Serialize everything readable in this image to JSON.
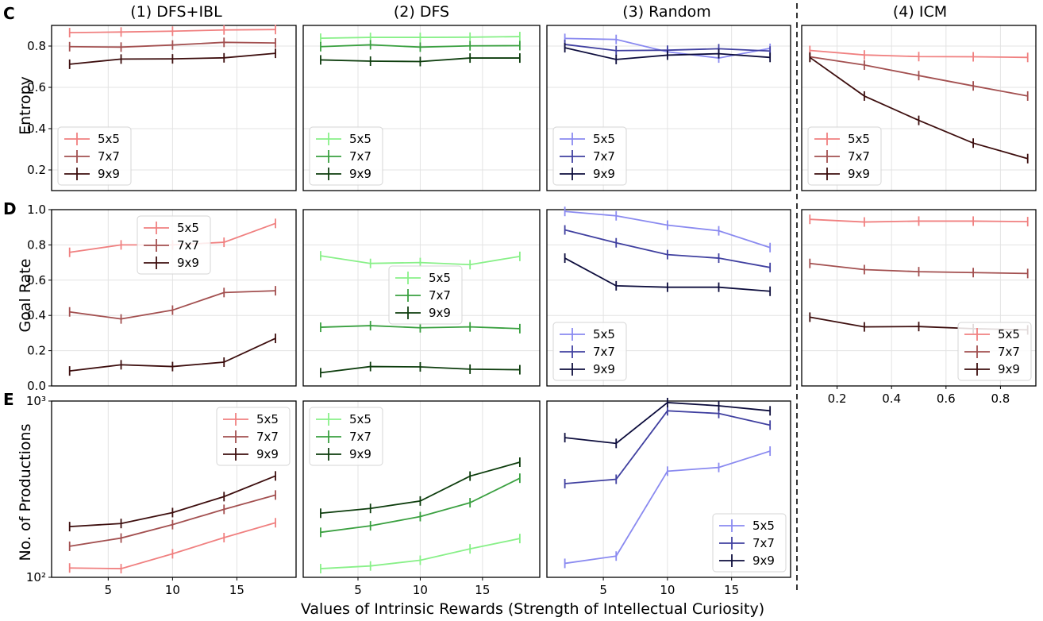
{
  "figure": {
    "row_labels": [
      "C",
      "D",
      "E"
    ],
    "xlabel": "Values of Intrinsic Rewards (Strength of Intellectual Curiosity)"
  },
  "colors": {
    "dfsibl": [
      "#f08080",
      "#a35050",
      "#3d0e0e"
    ],
    "dfs": [
      "#88f088",
      "#3aa040",
      "#0d3d0d"
    ],
    "random": [
      "#8a8af0",
      "#4040a0",
      "#0d0d3d"
    ],
    "icm": [
      "#f08080",
      "#a35050",
      "#3d0e0e"
    ]
  },
  "chart_data": [
    {
      "id": "entropy-dfsibl",
      "type": "line",
      "title": "(1) DFS+IBL",
      "ylabel": "Entropy",
      "x": [
        2,
        6,
        10,
        14,
        18
      ],
      "xlim": [
        0.6,
        19.6
      ],
      "ylim": [
        0.1,
        0.9
      ],
      "yticks": [
        0.2,
        0.4,
        0.6,
        0.8
      ],
      "yticklabels": [
        "0.2",
        "0.4",
        "0.6",
        "0.8"
      ],
      "xticks": [
        5,
        10,
        15
      ],
      "palette": "dfsibl",
      "legend": "lower-left",
      "series": [
        {
          "name": "5x5",
          "values": [
            0.865,
            0.868,
            0.872,
            0.878,
            0.88
          ]
        },
        {
          "name": "7x7",
          "values": [
            0.797,
            0.795,
            0.805,
            0.818,
            0.815
          ]
        },
        {
          "name": "9x9",
          "values": [
            0.712,
            0.737,
            0.738,
            0.743,
            0.765
          ]
        }
      ]
    },
    {
      "id": "entropy-dfs",
      "type": "line",
      "title": "(2) DFS",
      "ylabel": "",
      "x": [
        2,
        6,
        10,
        14,
        18
      ],
      "xlim": [
        0.6,
        19.6
      ],
      "ylim": [
        0.1,
        0.9
      ],
      "yticks": [
        0.2,
        0.4,
        0.6,
        0.8
      ],
      "xticks": [
        5,
        10,
        15
      ],
      "palette": "dfs",
      "legend": "lower-left",
      "series": [
        {
          "name": "5x5",
          "values": [
            0.838,
            0.842,
            0.842,
            0.843,
            0.846
          ]
        },
        {
          "name": "7x7",
          "values": [
            0.797,
            0.806,
            0.795,
            0.801,
            0.802
          ]
        },
        {
          "name": "9x9",
          "values": [
            0.733,
            0.727,
            0.725,
            0.742,
            0.742
          ]
        }
      ]
    },
    {
      "id": "entropy-random",
      "type": "line",
      "title": "(3) Random",
      "ylabel": "",
      "x": [
        2,
        6,
        10,
        14,
        18
      ],
      "xlim": [
        0.6,
        19.6
      ],
      "ylim": [
        0.1,
        0.9
      ],
      "yticks": [
        0.2,
        0.4,
        0.6,
        0.8
      ],
      "xticks": [
        5,
        10,
        15
      ],
      "palette": "random",
      "legend": "lower-left",
      "series": [
        {
          "name": "5x5",
          "values": [
            0.837,
            0.832,
            0.772,
            0.742,
            0.789
          ]
        },
        {
          "name": "7x7",
          "values": [
            0.808,
            0.778,
            0.78,
            0.787,
            0.776
          ]
        },
        {
          "name": "9x9",
          "values": [
            0.792,
            0.735,
            0.756,
            0.763,
            0.745
          ]
        }
      ]
    },
    {
      "id": "entropy-icm",
      "type": "line",
      "title": "(4) ICM",
      "ylabel": "",
      "x": [
        0.1,
        0.3,
        0.5,
        0.7,
        0.9
      ],
      "xlim": [
        0.07,
        0.93
      ],
      "ylim": [
        0.1,
        0.9
      ],
      "yticks": [
        0.2,
        0.4,
        0.6,
        0.8
      ],
      "xticks": [
        0.2,
        0.4,
        0.6,
        0.8
      ],
      "palette": "icm",
      "legend": "lower-left",
      "series": [
        {
          "name": "5x5",
          "values": [
            0.779,
            0.757,
            0.749,
            0.748,
            0.745
          ]
        },
        {
          "name": "7x7",
          "values": [
            0.748,
            0.708,
            0.657,
            0.607,
            0.558
          ]
        },
        {
          "name": "9x9",
          "values": [
            0.745,
            0.558,
            0.44,
            0.33,
            0.255
          ]
        }
      ]
    },
    {
      "id": "goal-dfsibl",
      "type": "line",
      "ylabel": "Goal Rate",
      "x": [
        2,
        6,
        10,
        14,
        18
      ],
      "xlim": [
        0.6,
        19.6
      ],
      "ylim": [
        0.0,
        1.0
      ],
      "yticks": [
        0.0,
        0.2,
        0.4,
        0.6,
        0.8,
        1.0
      ],
      "yticklabels": [
        "0.0",
        "0.2",
        "0.4",
        "0.6",
        "0.8",
        "1.0"
      ],
      "xticks": [
        5,
        10,
        15
      ],
      "palette": "dfsibl",
      "legend": "top-center",
      "series": [
        {
          "name": "5x5",
          "values": [
            0.758,
            0.8,
            0.8,
            0.815,
            0.922
          ]
        },
        {
          "name": "7x7",
          "values": [
            0.42,
            0.38,
            0.43,
            0.53,
            0.54
          ]
        },
        {
          "name": "9x9",
          "values": [
            0.085,
            0.12,
            0.11,
            0.135,
            0.27
          ]
        }
      ]
    },
    {
      "id": "goal-dfs",
      "type": "line",
      "ylabel": "",
      "x": [
        2,
        6,
        10,
        14,
        18
      ],
      "xlim": [
        0.6,
        19.6
      ],
      "ylim": [
        0.0,
        1.0
      ],
      "yticks": [
        0.0,
        0.2,
        0.4,
        0.6,
        0.8,
        1.0
      ],
      "xticks": [
        5,
        10,
        15
      ],
      "palette": "dfs",
      "legend": "center",
      "series": [
        {
          "name": "5x5",
          "values": [
            0.738,
            0.695,
            0.7,
            0.688,
            0.735
          ]
        },
        {
          "name": "7x7",
          "values": [
            0.333,
            0.342,
            0.33,
            0.335,
            0.325
          ]
        },
        {
          "name": "9x9",
          "values": [
            0.075,
            0.11,
            0.108,
            0.095,
            0.092
          ]
        }
      ]
    },
    {
      "id": "goal-random",
      "type": "line",
      "ylabel": "",
      "x": [
        2,
        6,
        10,
        14,
        18
      ],
      "xlim": [
        0.6,
        19.6
      ],
      "ylim": [
        0.0,
        1.0
      ],
      "yticks": [
        0.0,
        0.2,
        0.4,
        0.6,
        0.8,
        1.0
      ],
      "xticks": [
        5,
        10,
        15
      ],
      "palette": "random",
      "legend": "lower-left",
      "series": [
        {
          "name": "5x5",
          "values": [
            0.99,
            0.965,
            0.912,
            0.88,
            0.785
          ]
        },
        {
          "name": "7x7",
          "values": [
            0.885,
            0.812,
            0.745,
            0.725,
            0.672
          ]
        },
        {
          "name": "9x9",
          "values": [
            0.725,
            0.568,
            0.56,
            0.56,
            0.537
          ]
        }
      ]
    },
    {
      "id": "goal-icm",
      "type": "line",
      "ylabel": "",
      "x": [
        0.1,
        0.3,
        0.5,
        0.7,
        0.9
      ],
      "xlim": [
        0.07,
        0.93
      ],
      "ylim": [
        0.0,
        1.0
      ],
      "yticks": [
        0.0,
        0.2,
        0.4,
        0.6,
        0.8,
        1.0
      ],
      "xticks": [
        0.2,
        0.4,
        0.6,
        0.8
      ],
      "xticklabels": [
        "0.2",
        "0.4",
        "0.6",
        "0.8"
      ],
      "palette": "icm",
      "legend": "lower-right",
      "series": [
        {
          "name": "5x5",
          "values": [
            0.945,
            0.93,
            0.935,
            0.935,
            0.932
          ]
        },
        {
          "name": "7x7",
          "values": [
            0.695,
            0.66,
            0.648,
            0.643,
            0.638
          ]
        },
        {
          "name": "9x9",
          "values": [
            0.39,
            0.335,
            0.337,
            0.325,
            0.318
          ]
        }
      ]
    },
    {
      "id": "prod-dfsibl",
      "type": "line",
      "ylabel": "No. of Productions",
      "yscale": "log",
      "x": [
        2,
        6,
        10,
        14,
        18
      ],
      "xlim": [
        0.6,
        19.6
      ],
      "ylim": [
        100,
        1000
      ],
      "yticks": [
        100,
        1000
      ],
      "yticklabels": [
        "10²",
        "10³"
      ],
      "xticks": [
        5,
        10,
        15
      ],
      "xticklabels": [
        "5",
        "10",
        "15"
      ],
      "palette": "dfsibl",
      "legend": "upper-right",
      "series": [
        {
          "name": "5x5",
          "values": [
            113,
            112,
            136,
            168,
            204
          ]
        },
        {
          "name": "7x7",
          "values": [
            150,
            167,
            199,
            243,
            293
          ]
        },
        {
          "name": "9x9",
          "values": [
            194,
            202,
            233,
            287,
            376
          ]
        }
      ]
    },
    {
      "id": "prod-dfs",
      "type": "line",
      "ylabel": "",
      "yscale": "log",
      "x": [
        2,
        6,
        10,
        14,
        18
      ],
      "xlim": [
        0.6,
        19.6
      ],
      "ylim": [
        100,
        1000
      ],
      "yticks": [
        100,
        1000
      ],
      "xticks": [
        5,
        10,
        15
      ],
      "xticklabels": [
        "5",
        "10",
        "15"
      ],
      "palette": "dfs",
      "legend": "upper-left",
      "series": [
        {
          "name": "5x5",
          "values": [
            112,
            116,
            125,
            145,
            166
          ]
        },
        {
          "name": "7x7",
          "values": [
            180,
            196,
            221,
            265,
            365
          ]
        },
        {
          "name": "9x9",
          "values": [
            231,
            246,
            271,
            375,
            450
          ]
        }
      ]
    },
    {
      "id": "prod-random",
      "type": "line",
      "ylabel": "",
      "yscale": "log",
      "x": [
        2,
        6,
        10,
        14,
        18
      ],
      "xlim": [
        0.6,
        19.6
      ],
      "ylim": [
        100,
        1000
      ],
      "yticks": [
        100,
        1000
      ],
      "xticks": [
        5,
        10,
        15
      ],
      "xticklabels": [
        "5",
        "10",
        "15"
      ],
      "palette": "random",
      "legend": "lower-right",
      "series": [
        {
          "name": "5x5",
          "values": [
            120,
            132,
            400,
            420,
            520
          ]
        },
        {
          "name": "7x7",
          "values": [
            340,
            360,
            880,
            850,
            730
          ]
        },
        {
          "name": "9x9",
          "values": [
            620,
            575,
            980,
            940,
            880
          ]
        }
      ]
    }
  ]
}
